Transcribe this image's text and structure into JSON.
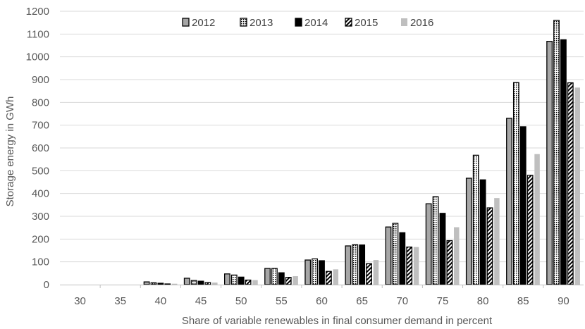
{
  "chart_data": {
    "type": "bar",
    "title": "",
    "xlabel": "Share of variable renewables in final consumer demand in percent",
    "ylabel": "Storage energy in GWh",
    "ylim": [
      0,
      1200
    ],
    "yticks": [
      "0",
      "100",
      "200",
      "300",
      "400",
      "500",
      "600",
      "700",
      "800",
      "900",
      "1000",
      "1100",
      "1200"
    ],
    "categories": [
      "30",
      "35",
      "40",
      "45",
      "50",
      "55",
      "60",
      "65",
      "70",
      "75",
      "80",
      "85",
      "90"
    ],
    "grid": "horizontal",
    "legend_position": "top-center",
    "series": [
      {
        "name": "2012",
        "pattern": "gray-solid",
        "color": "#a6a6a6",
        "values": [
          0,
          0,
          12,
          28,
          47,
          71,
          108,
          170,
          253,
          355,
          467,
          730,
          1068
        ]
      },
      {
        "name": "2013",
        "pattern": "dotted",
        "color": "#ffffff",
        "values": [
          0,
          0,
          8,
          18,
          42,
          71,
          113,
          175,
          269,
          386,
          568,
          887,
          1160
        ]
      },
      {
        "name": "2014",
        "pattern": "black-solid",
        "color": "#000000",
        "values": [
          0,
          0,
          6,
          15,
          33,
          52,
          105,
          174,
          228,
          313,
          460,
          693,
          1075
        ]
      },
      {
        "name": "2015",
        "pattern": "diagonal-stripes",
        "color": "#ffffff",
        "values": [
          0,
          0,
          3,
          9,
          20,
          32,
          58,
          92,
          165,
          193,
          337,
          480,
          886
        ]
      },
      {
        "name": "2016",
        "pattern": "light-gray",
        "color": "#bfbfbf",
        "values": [
          0,
          0,
          4,
          9,
          20,
          37,
          67,
          108,
          165,
          252,
          380,
          573,
          865
        ]
      }
    ]
  }
}
